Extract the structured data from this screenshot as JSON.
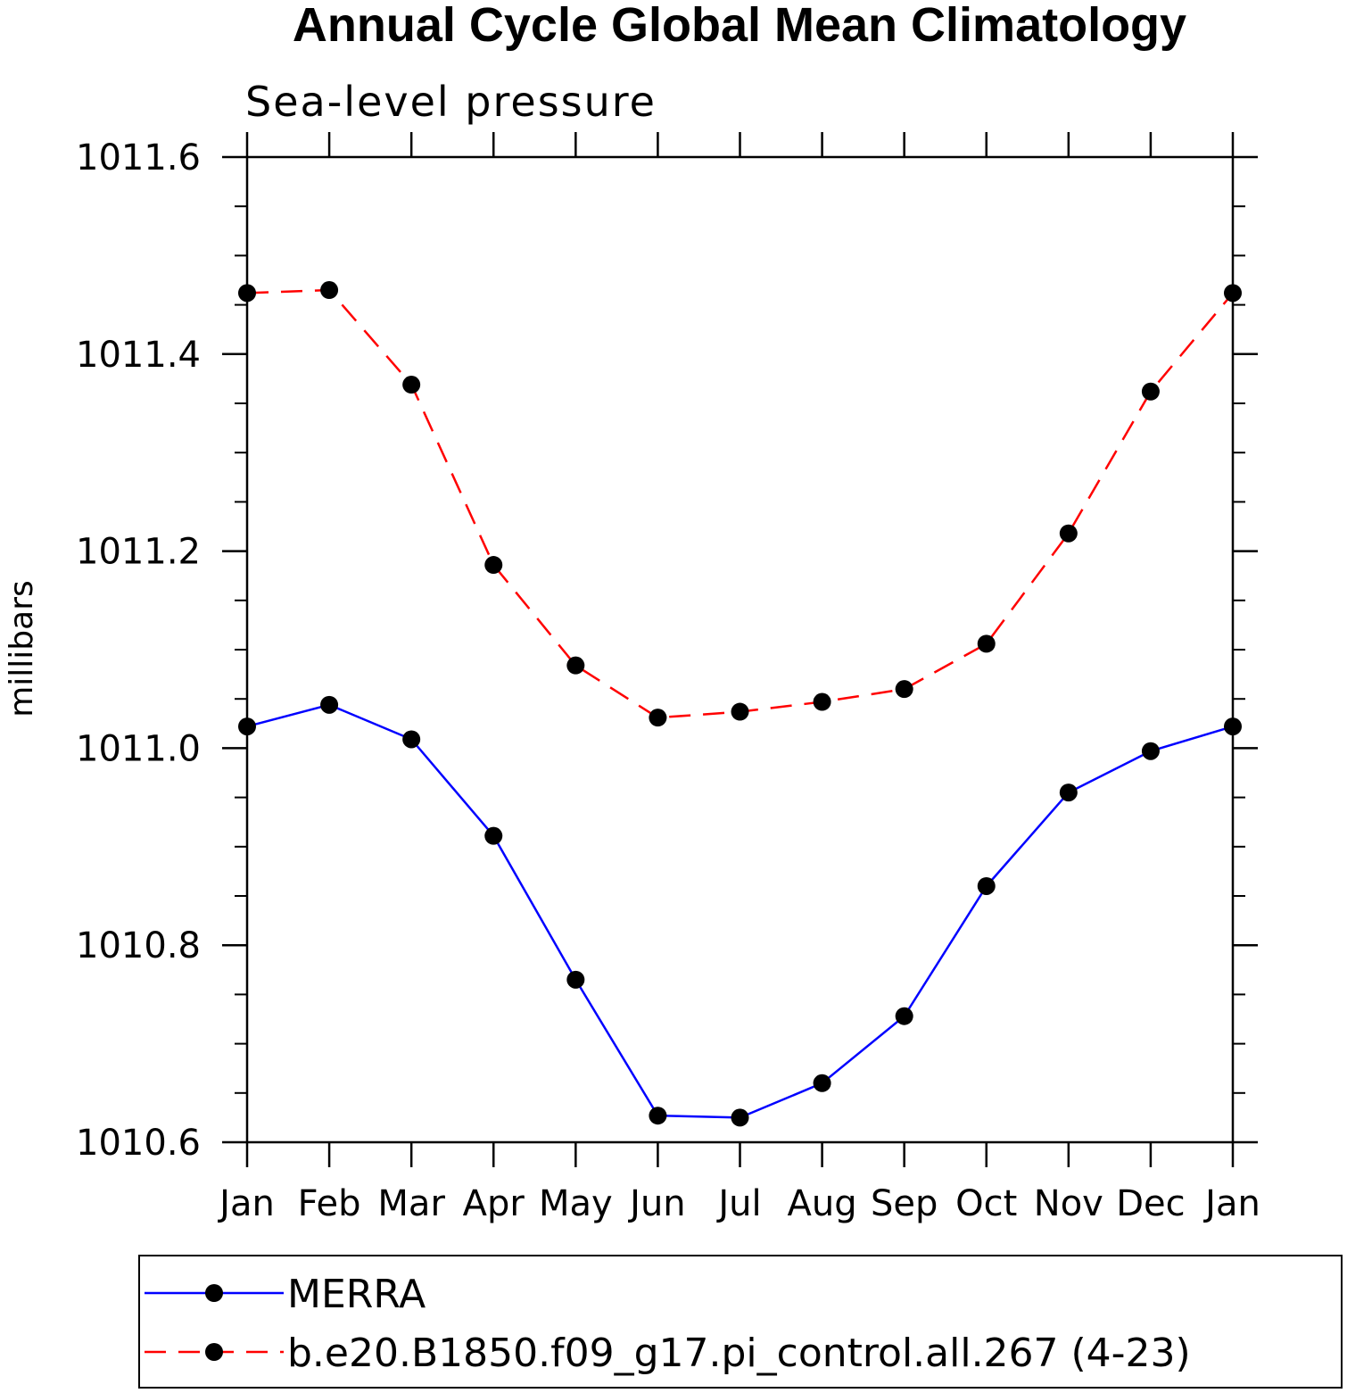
{
  "chart_data": {
    "type": "line",
    "title": "Annual Cycle Global Mean Climatology",
    "subtitle": "Sea-level pressure",
    "xlabel": "",
    "ylabel": "millibars",
    "categories": [
      "Jan",
      "Feb",
      "Mar",
      "Apr",
      "May",
      "Jun",
      "Jul",
      "Aug",
      "Sep",
      "Oct",
      "Nov",
      "Dec",
      "Jan"
    ],
    "ylim": [
      1010.6,
      1011.6
    ],
    "yticks": [
      1010.6,
      1010.8,
      1011.0,
      1011.2,
      1011.4,
      1011.6
    ],
    "ytick_labels": [
      "1010.6",
      "1010.8",
      "1011.0",
      "1011.2",
      "1011.4",
      "1011.6"
    ],
    "legend_position": "bottom",
    "series": [
      {
        "name": "MERRA",
        "color": "#0000ff",
        "dash": "solid",
        "values": [
          1011.022,
          1011.044,
          1011.009,
          1010.911,
          1010.765,
          1010.627,
          1010.625,
          1010.66,
          1010.728,
          1010.86,
          1010.955,
          1010.997,
          1011.022
        ]
      },
      {
        "name": "b.e20.B1850.f09_g17.pi_control.all.267 (4-23)",
        "color": "#ff0000",
        "dash": "dashed",
        "values": [
          1011.462,
          1011.465,
          1011.369,
          1011.186,
          1011.084,
          1011.031,
          1011.037,
          1011.047,
          1011.06,
          1011.106,
          1011.218,
          1011.362,
          1011.462
        ]
      }
    ]
  }
}
